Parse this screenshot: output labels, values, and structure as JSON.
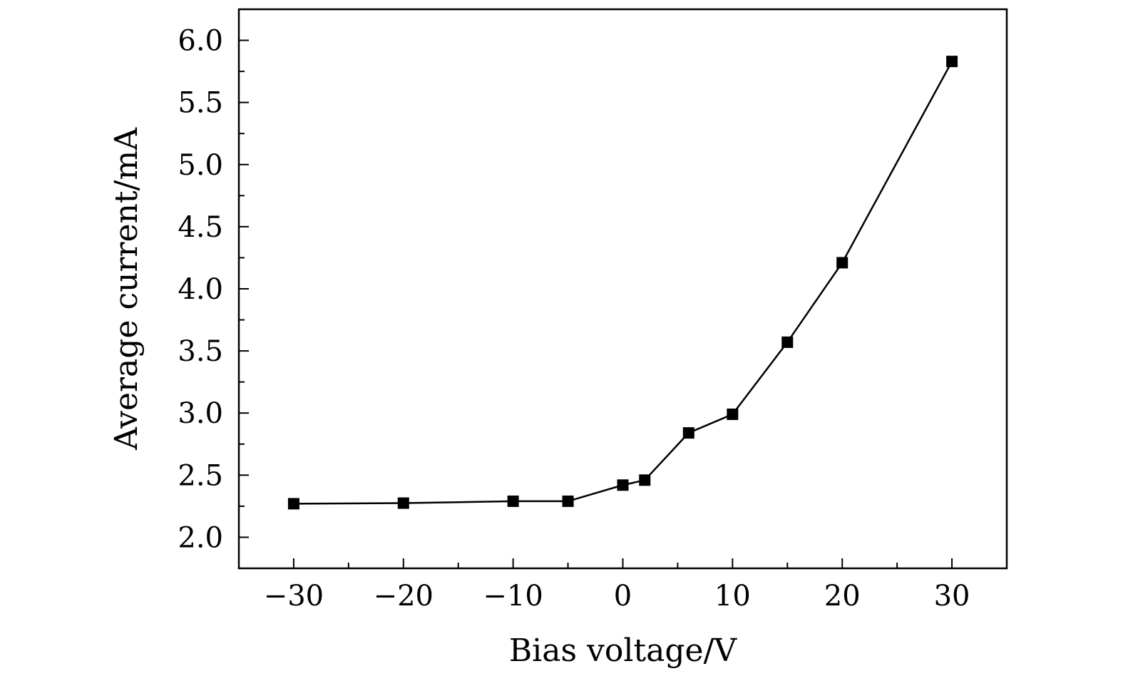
{
  "chart_data": {
    "type": "line",
    "title": "",
    "xlabel": "Bias voltage/V",
    "ylabel": "Average current/mA",
    "xlim": [
      -35,
      35
    ],
    "ylim": [
      1.75,
      6.25
    ],
    "x_ticks": [
      -30,
      -20,
      -10,
      0,
      10,
      20,
      30
    ],
    "x_tick_labels": [
      "−30",
      "−20",
      "−10",
      "0",
      "10",
      "20",
      "30"
    ],
    "y_ticks": [
      2.0,
      2.5,
      3.0,
      3.5,
      4.0,
      4.5,
      5.0,
      5.5,
      6.0
    ],
    "y_tick_labels": [
      "2.0",
      "2.5",
      "3.0",
      "3.5",
      "4.0",
      "4.5",
      "5.0",
      "5.5",
      "6.0"
    ],
    "grid": false,
    "marker": "square",
    "color": "#000000",
    "series": [
      {
        "x": [
          -30,
          -20,
          -10,
          -5,
          0,
          2,
          6,
          10,
          15,
          20,
          30
        ],
        "y": [
          2.27,
          2.275,
          2.29,
          2.29,
          2.42,
          2.46,
          2.84,
          2.99,
          3.57,
          4.21,
          5.83
        ]
      }
    ]
  }
}
